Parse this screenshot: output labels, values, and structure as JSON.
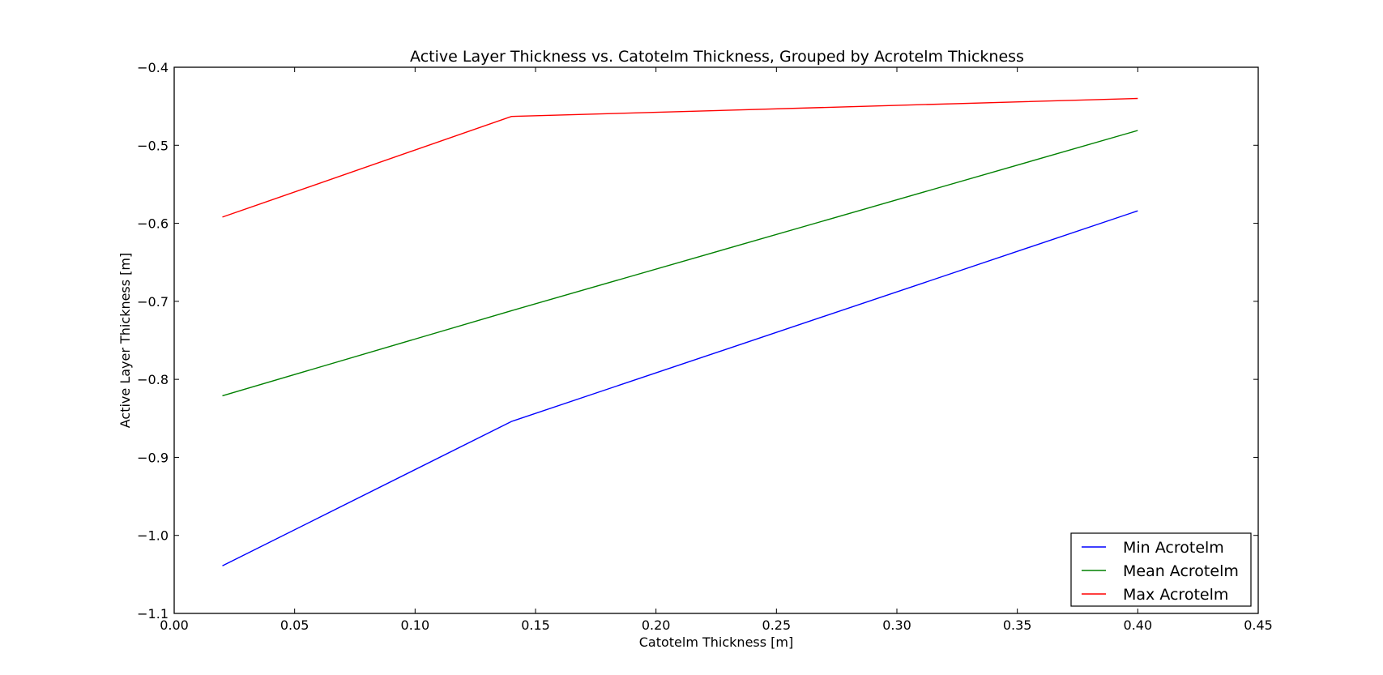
{
  "chart_data": {
    "type": "line",
    "title": "Active Layer Thickness vs. Catotelm Thickness, Grouped by Acrotelm Thickness",
    "xlabel": "Catotelm Thickness [m]",
    "ylabel": "Active Layer Thickness [m]",
    "xlim": [
      0.0,
      0.45
    ],
    "ylim": [
      -1.1,
      -0.4
    ],
    "x_ticks": [
      0.0,
      0.05,
      0.1,
      0.15,
      0.2,
      0.25,
      0.3,
      0.35,
      0.4,
      0.45
    ],
    "x_tick_labels": [
      "0.00",
      "0.05",
      "0.10",
      "0.15",
      "0.20",
      "0.25",
      "0.30",
      "0.35",
      "0.40",
      "0.45"
    ],
    "y_ticks": [
      -0.4,
      -0.5,
      -0.6,
      -0.7,
      -0.8,
      -0.9,
      -1.0,
      -1.1
    ],
    "y_tick_labels": [
      "−0.4",
      "−0.5",
      "−0.6",
      "−0.7",
      "−0.8",
      "−0.9",
      "−1.0",
      "−1.1"
    ],
    "x": [
      0.02,
      0.14,
      0.4
    ],
    "grid": false,
    "legend_position": "bottom-right",
    "series": [
      {
        "name": "Min Acrotelm",
        "color": "#0000ff",
        "values": [
          -1.039,
          -0.854,
          -0.584
        ]
      },
      {
        "name": "Mean Acrotelm",
        "color": "#008000",
        "values": [
          -0.821,
          -0.712,
          -0.481
        ]
      },
      {
        "name": "Max Acrotelm",
        "color": "#ff0000",
        "values": [
          -0.592,
          -0.463,
          -0.44
        ]
      }
    ]
  }
}
